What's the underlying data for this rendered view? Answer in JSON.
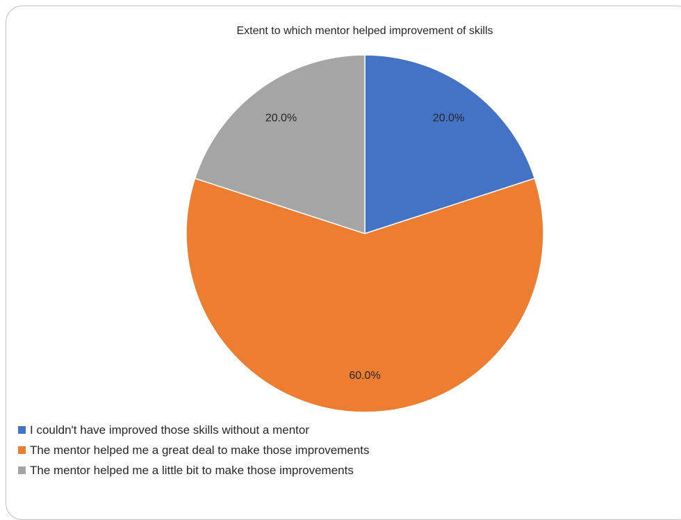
{
  "chart_data": {
    "type": "pie",
    "title": "Extent to which mentor helped improvement of skills",
    "categories": [
      "I couldn't have improved those skills without a mentor",
      "The mentor helped me a great deal to make those improvements",
      "The mentor helped me a little bit to make those improvements"
    ],
    "values": [
      20.0,
      60.0,
      20.0
    ],
    "data_labels": [
      "20.0%",
      "60.0%",
      "20.0%"
    ],
    "colors": [
      "#4472c4",
      "#ed7d31",
      "#a5a5a5"
    ],
    "start_angle_deg": 0,
    "direction": "clockwise",
    "legend_position": "bottom-left"
  }
}
